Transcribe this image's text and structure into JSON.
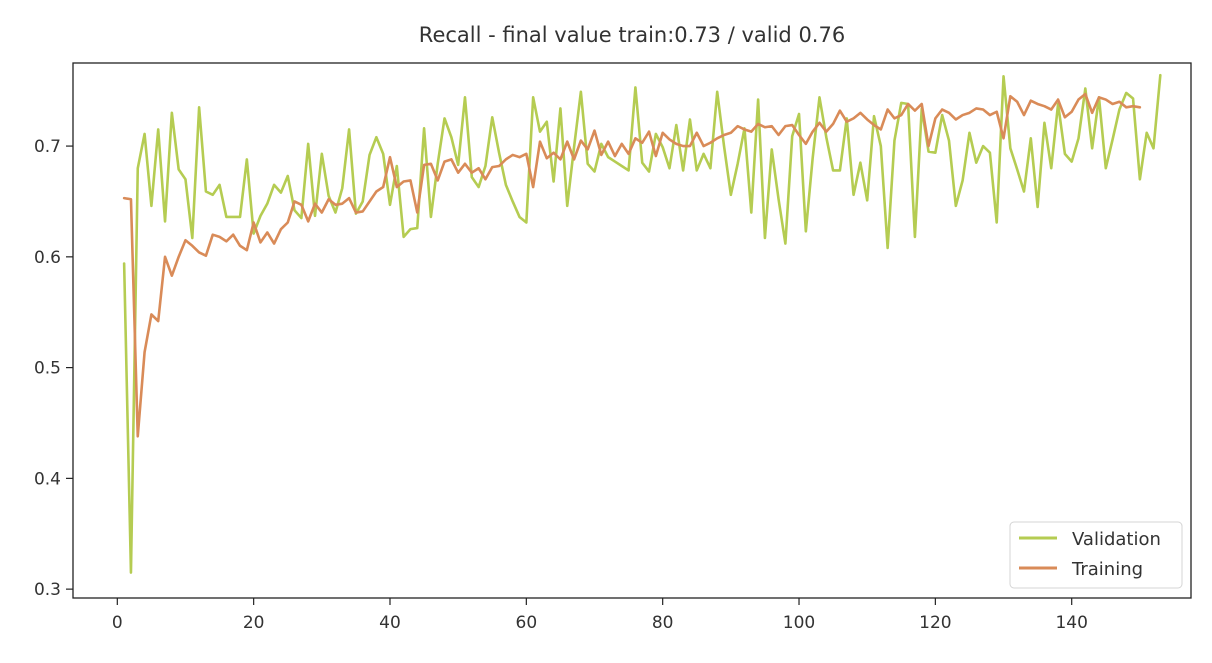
{
  "chart_data": {
    "type": "line",
    "title": "Recall - final value train:0.73 / valid 0.76",
    "xlabel": "",
    "ylabel": "",
    "xlim": [
      -6.5,
      157.5
    ],
    "ylim": [
      0.292,
      0.775
    ],
    "xticks": [
      0,
      20,
      40,
      60,
      80,
      100,
      120,
      140
    ],
    "yticks": [
      0.3,
      0.4,
      0.5,
      0.6,
      0.7
    ],
    "grid": false,
    "legend_position": "bottom-right",
    "series": [
      {
        "name": "Validation",
        "color": "#b5cc52",
        "x_start": 1,
        "values": [
          0.594,
          0.315,
          0.68,
          0.711,
          0.646,
          0.715,
          0.632,
          0.73,
          0.679,
          0.67,
          0.617,
          0.735,
          0.659,
          0.656,
          0.665,
          0.636,
          0.636,
          0.636,
          0.688,
          0.621,
          0.637,
          0.648,
          0.665,
          0.658,
          0.673,
          0.642,
          0.635,
          0.702,
          0.637,
          0.693,
          0.655,
          0.64,
          0.662,
          0.715,
          0.639,
          0.65,
          0.692,
          0.708,
          0.693,
          0.647,
          0.682,
          0.618,
          0.625,
          0.626,
          0.716,
          0.636,
          0.684,
          0.725,
          0.708,
          0.683,
          0.744,
          0.672,
          0.663,
          0.682,
          0.726,
          0.694,
          0.665,
          0.65,
          0.636,
          0.631,
          0.744,
          0.713,
          0.722,
          0.668,
          0.734,
          0.646,
          0.699,
          0.749,
          0.684,
          0.677,
          0.702,
          0.69,
          0.686,
          0.682,
          0.678,
          0.753,
          0.685,
          0.677,
          0.711,
          0.699,
          0.68,
          0.719,
          0.678,
          0.724,
          0.678,
          0.693,
          0.68,
          0.749,
          0.7,
          0.656,
          0.684,
          0.716,
          0.64,
          0.742,
          0.617,
          0.697,
          0.652,
          0.612,
          0.709,
          0.729,
          0.623,
          0.689,
          0.744,
          0.708,
          0.678,
          0.678,
          0.725,
          0.656,
          0.685,
          0.651,
          0.727,
          0.7,
          0.608,
          0.705,
          0.739,
          0.738,
          0.618,
          0.734,
          0.695,
          0.694,
          0.728,
          0.705,
          0.646,
          0.669,
          0.712,
          0.685,
          0.7,
          0.694,
          0.631,
          0.763,
          0.698,
          0.679,
          0.659,
          0.707,
          0.645,
          0.721,
          0.68,
          0.738,
          0.693,
          0.686,
          0.707,
          0.752,
          0.698,
          0.744,
          0.68,
          0.706,
          0.733,
          0.748,
          0.743,
          0.67,
          0.712,
          0.698,
          0.764
        ]
      },
      {
        "name": "Training",
        "color": "#d98b58",
        "x_start": 1,
        "values": [
          0.653,
          0.652,
          0.438,
          0.514,
          0.548,
          0.542,
          0.6,
          0.583,
          0.6,
          0.615,
          0.61,
          0.604,
          0.601,
          0.62,
          0.618,
          0.614,
          0.62,
          0.61,
          0.606,
          0.631,
          0.613,
          0.622,
          0.612,
          0.625,
          0.631,
          0.65,
          0.647,
          0.632,
          0.648,
          0.64,
          0.652,
          0.647,
          0.648,
          0.653,
          0.64,
          0.641,
          0.65,
          0.659,
          0.663,
          0.69,
          0.663,
          0.668,
          0.669,
          0.64,
          0.683,
          0.684,
          0.669,
          0.686,
          0.688,
          0.676,
          0.684,
          0.676,
          0.68,
          0.67,
          0.681,
          0.682,
          0.688,
          0.692,
          0.69,
          0.693,
          0.663,
          0.704,
          0.689,
          0.694,
          0.688,
          0.704,
          0.688,
          0.705,
          0.697,
          0.714,
          0.692,
          0.704,
          0.691,
          0.702,
          0.693,
          0.707,
          0.703,
          0.713,
          0.691,
          0.712,
          0.706,
          0.702,
          0.7,
          0.7,
          0.712,
          0.7,
          0.703,
          0.707,
          0.71,
          0.712,
          0.718,
          0.715,
          0.713,
          0.72,
          0.717,
          0.718,
          0.71,
          0.718,
          0.719,
          0.71,
          0.702,
          0.713,
          0.721,
          0.713,
          0.72,
          0.732,
          0.722,
          0.725,
          0.73,
          0.724,
          0.719,
          0.715,
          0.733,
          0.725,
          0.728,
          0.738,
          0.732,
          0.738,
          0.7,
          0.725,
          0.733,
          0.73,
          0.724,
          0.728,
          0.73,
          0.734,
          0.733,
          0.728,
          0.731,
          0.707,
          0.745,
          0.74,
          0.728,
          0.741,
          0.738,
          0.736,
          0.733,
          0.742,
          0.726,
          0.731,
          0.742,
          0.747,
          0.73,
          0.744,
          0.742,
          0.738,
          0.74,
          0.735,
          0.736,
          0.735
        ]
      }
    ]
  }
}
